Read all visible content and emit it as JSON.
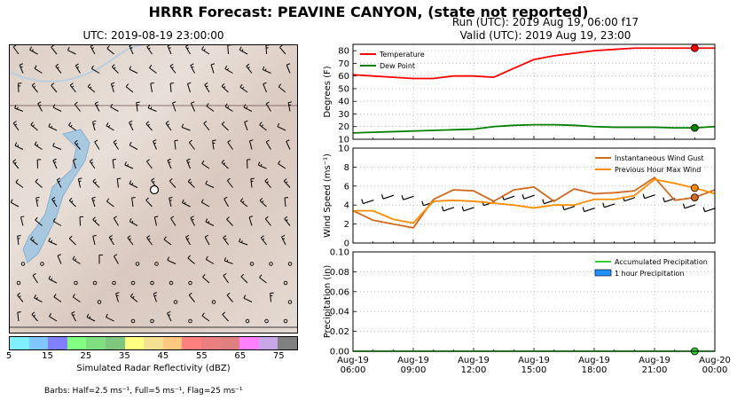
{
  "header": {
    "title": "HRRR Forecast: PEAVINE CANYON, (state not reported)",
    "run": "Run (UTC): 2019 Aug 19, 06:00 f17",
    "valid": "Valid (UTC): 2019 Aug 19, 23:00"
  },
  "map": {
    "title": "UTC: 2019-08-19 23:00:00",
    "colorbar_label": "Simulated Radar Reflectivity (dBZ)",
    "colorbar_ticks": [
      "5",
      "15",
      "25",
      "35",
      "45",
      "55",
      "65",
      "75"
    ],
    "colorbar_colors": [
      "#7ff0ff",
      "#7fc6ff",
      "#807fff",
      "#80ff80",
      "#7fde7f",
      "#7fc77f",
      "#ffff80",
      "#f3e090",
      "#ffc880",
      "#ff7f7f",
      "#ea7f7f",
      "#e07f7f",
      "#ff80ff",
      "#c7a7e8",
      "#808080"
    ],
    "barbs_note": "Barbs: Half=2.5 ms⁻¹, Full=5 ms⁻¹, Flag=25 ms⁻¹"
  },
  "chart_data": [
    {
      "type": "line",
      "ylabel": "Degrees (F)",
      "ylim": [
        10,
        85
      ],
      "yticks": [
        10,
        20,
        30,
        40,
        50,
        60,
        70,
        80
      ],
      "xlim": [
        "2019-08-19 06:00",
        "2019-08-20 00:00"
      ],
      "xticks": [
        "Aug-19\n06:00",
        "Aug-19\n09:00",
        "Aug-19\n12:00",
        "Aug-19\n15:00",
        "Aug-19\n18:00",
        "Aug-19\n21:00",
        "Aug-20\n00:00"
      ],
      "grid": true,
      "legend": "top-left",
      "series": [
        {
          "name": "Temperature",
          "color": "#ff0000",
          "x": [
            6,
            7,
            8,
            9,
            10,
            11,
            12,
            13,
            14,
            15,
            16,
            17,
            18,
            19,
            20,
            21,
            22,
            23,
            24
          ],
          "y": [
            61,
            60,
            59,
            58,
            58,
            60,
            60,
            59,
            66,
            73,
            76,
            78,
            80,
            81,
            82,
            82,
            82,
            82,
            82
          ],
          "marker_x": 23,
          "marker_y": 82
        },
        {
          "name": "Dew Point",
          "color": "#008000",
          "x": [
            6,
            7,
            8,
            9,
            10,
            11,
            12,
            13,
            14,
            15,
            16,
            17,
            18,
            19,
            20,
            21,
            22,
            23,
            24
          ],
          "y": [
            15,
            15.5,
            16,
            16.5,
            17,
            17.5,
            18,
            20,
            21,
            21.5,
            21.5,
            21,
            20,
            19.5,
            19.5,
            19.5,
            19,
            19,
            20
          ],
          "marker_x": 23,
          "marker_y": 19
        }
      ]
    },
    {
      "type": "line",
      "ylabel": "Wind Speed (ms⁻¹)",
      "ylim": [
        0,
        10
      ],
      "yticks": [
        0,
        2,
        4,
        6,
        8,
        10
      ],
      "grid": true,
      "legend": "top-right",
      "series": [
        {
          "name": "Instantaneous Wind Gust",
          "color": "#d2691e",
          "x": [
            6,
            7,
            8,
            9,
            10,
            11,
            12,
            13,
            14,
            15,
            16,
            17,
            18,
            19,
            20,
            21,
            22,
            23,
            24
          ],
          "y": [
            3.4,
            2.4,
            2.0,
            1.6,
            4.6,
            5.6,
            5.5,
            4.4,
            5.6,
            5.9,
            4.4,
            5.7,
            5.2,
            5.3,
            5.5,
            6.9,
            4.5,
            4.8,
            5.6
          ],
          "marker_x": 23,
          "marker_y": 4.8
        },
        {
          "name": "Previous Hour Max Wind",
          "color": "#ff8c00",
          "x": [
            6,
            7,
            8,
            9,
            10,
            11,
            12,
            13,
            14,
            15,
            16,
            17,
            18,
            19,
            20,
            21,
            22,
            23,
            24
          ],
          "y": [
            3.4,
            3.4,
            2.5,
            2.1,
            4.4,
            4.5,
            4.4,
            4.2,
            4.0,
            3.7,
            4.0,
            4.0,
            4.6,
            4.6,
            5.0,
            6.7,
            6.3,
            5.8,
            5.2
          ],
          "marker_x": 23,
          "marker_y": 5.8
        }
      ]
    },
    {
      "type": "line",
      "ylabel": "Precipitation (in)",
      "ylim": [
        0,
        0.1
      ],
      "yticks": [
        "0.00",
        "0.02",
        "0.04",
        "0.06",
        "0.08",
        "0.10"
      ],
      "grid": true,
      "legend": "top-right",
      "series": [
        {
          "name": "Accumulated Precipitation",
          "color": "#33cc33",
          "x": [
            6,
            24
          ],
          "y": [
            0,
            0
          ],
          "marker_x": 23,
          "marker_y": 0
        },
        {
          "name": "1 hour Precipitation",
          "color": "#1e90ff",
          "type": "bar",
          "x": [],
          "y": []
        }
      ]
    }
  ]
}
